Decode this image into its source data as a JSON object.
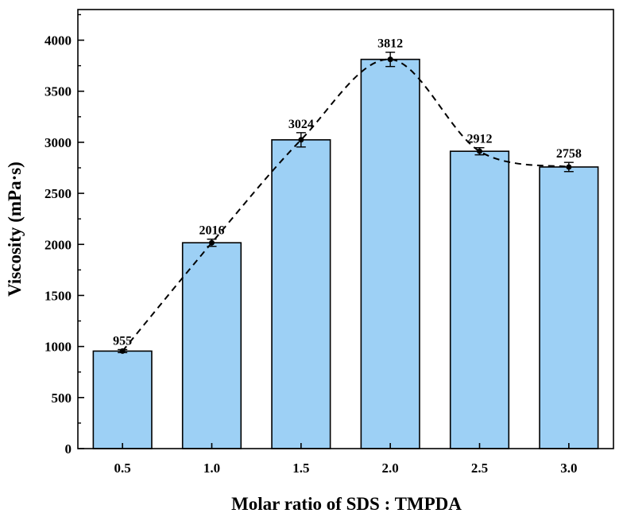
{
  "chart_data": {
    "type": "bar",
    "title": "",
    "xlabel": "Molar ratio of SDS : TMPDA",
    "ylabel": "Viscosity (mPa·s)",
    "categories": [
      "0.5",
      "1.0",
      "1.5",
      "2.0",
      "2.5",
      "3.0"
    ],
    "values": [
      955,
      2016,
      3024,
      3812,
      2912,
      2758
    ],
    "errors": [
      15,
      35,
      70,
      70,
      35,
      45
    ],
    "data_labels": [
      "955",
      "2016",
      "3024",
      "3812",
      "2912",
      "2758"
    ],
    "ylim": [
      0,
      4300
    ],
    "yticks": [
      0,
      500,
      1000,
      1500,
      2000,
      2500,
      3000,
      3500,
      4000
    ],
    "ytick_labels": [
      "0",
      "500",
      "1000",
      "1500",
      "2000",
      "2500",
      "3000",
      "3500",
      "4000"
    ],
    "trend_line": "smooth dashed curve through bar tops",
    "grid": false,
    "colors": {
      "bar_fill": "#9dd0f5",
      "bar_edge": "#000000",
      "line": "#000000"
    }
  }
}
